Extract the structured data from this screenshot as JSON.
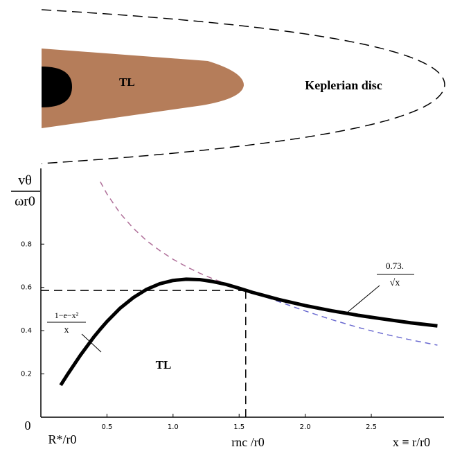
{
  "diagram": {
    "tl_label": "TL",
    "disc_label": "Keplerian disc"
  },
  "chart_data": {
    "type": "line",
    "y_label_top": "vθ",
    "y_label_bottom": "ωr0",
    "inner_fraction_top": "1−e−x²",
    "inner_fraction_bottom": "x",
    "outer_fraction_top": "0.73.",
    "outer_fraction_bottom": "√x",
    "region_label": "TL",
    "x_label_left": "R*/r0",
    "x_label_mid": "rnc /r0",
    "x_label_right": "x ≡ r/r0",
    "x": [
      0.15,
      0.2,
      0.3,
      0.4,
      0.45,
      0.5,
      0.6,
      0.7,
      0.8,
      0.9,
      1.0,
      1.1,
      1.2,
      1.3,
      1.4,
      1.5,
      1.6,
      1.8,
      2.0,
      2.2,
      2.4,
      2.6,
      2.8,
      3.0
    ],
    "series": [
      {
        "color": "#b0709a",
        "dash": "8,6",
        "width": 1.5,
        "values": [
          null,
          null,
          null,
          null,
          1.088,
          1.032,
          0.942,
          0.873,
          0.816,
          0.77,
          0.73,
          0.696,
          0.666,
          0.64,
          0.617,
          0.596,
          0.577,
          0.544,
          0.516,
          0.492,
          0.471,
          0.453,
          0.436,
          0.422
        ]
      },
      {
        "color": "#6a6ad0",
        "dash": "8,6",
        "width": 1.5,
        "values": [
          null,
          null,
          null,
          null,
          null,
          null,
          null,
          null,
          null,
          null,
          null,
          null,
          null,
          null,
          null,
          0.596,
          0.577,
          0.534,
          0.491,
          0.451,
          0.415,
          0.384,
          0.357,
          0.333
        ]
      },
      {
        "color": "#000000",
        "dash": "none",
        "width": 5,
        "values": [
          0.148,
          0.196,
          0.287,
          0.37,
          0.407,
          0.442,
          0.504,
          0.553,
          0.591,
          0.617,
          0.632,
          0.638,
          0.636,
          0.627,
          0.614,
          0.596,
          0.577,
          0.544,
          0.516,
          0.492,
          0.471,
          0.453,
          0.436,
          0.422
        ]
      }
    ],
    "marker_x": 1.55,
    "marker_y": 0.586,
    "xlim": [
      0,
      3.05
    ],
    "ylim": [
      0,
      1.15
    ],
    "xticks": [
      0.5,
      {
        "value": 1,
        "label": "1.0"
      },
      1.5,
      {
        "value": 2,
        "label": "2.0"
      },
      2.5
    ],
    "yticks": [
      0,
      0.2,
      0.4,
      0.6,
      0.8
    ]
  }
}
